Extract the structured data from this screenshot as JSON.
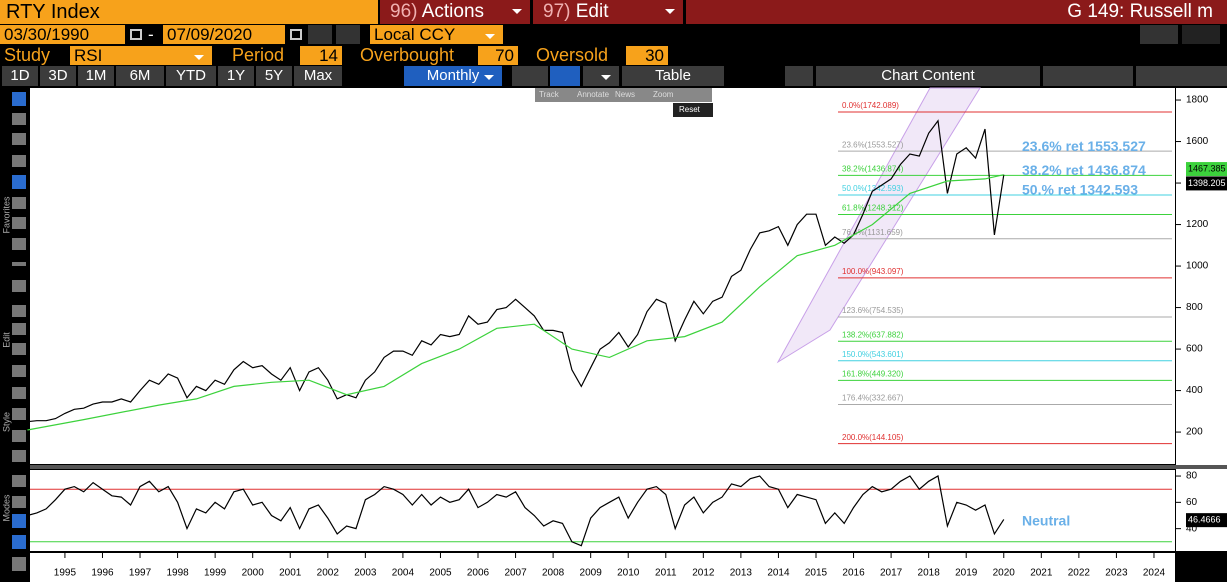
{
  "header": {
    "ticker": "RTY Index",
    "actions": {
      "number": "96)",
      "label": "Actions"
    },
    "edit": {
      "number": "97)",
      "label": "Edit"
    },
    "chart_name": "G 149: Russell m"
  },
  "date_range": {
    "start": "03/30/1990",
    "separator": "-",
    "end": "07/09/2020",
    "currency": "Local CCY"
  },
  "study": {
    "label": "Study",
    "name": "RSI",
    "period_label": "Period",
    "period": 14,
    "overbought_label": "Overbought",
    "overbought": 70,
    "oversold_label": "Oversold",
    "oversold": 30
  },
  "toolbar": {
    "ranges": [
      "1D",
      "3D",
      "1M",
      "6M",
      "YTD",
      "1Y",
      "5Y",
      "Max"
    ],
    "frequency": "Monthly",
    "table": "Table",
    "chart_content": "Chart Content"
  },
  "annotate_menu": {
    "items": [
      "Track",
      "Annotate",
      "News",
      "Zoom"
    ],
    "reset": "Reset"
  },
  "side_labels": [
    "Favorites",
    "Edit",
    "Style",
    "Modes"
  ],
  "chart_data": [
    {
      "type": "line",
      "xlim": [
        1994.57,
        2024.98
      ],
      "ylim": [
        51,
        1858
      ],
      "yticks": [
        200,
        400,
        600,
        800,
        1000,
        1200,
        1400,
        1600,
        1800
      ],
      "series": [
        {
          "color": "#000000",
          "x": [
            1994.5,
            1994.75,
            1995,
            1995.25,
            1995.5,
            1995.75,
            1996,
            1996.25,
            1996.5,
            1996.75,
            1997,
            1997.25,
            1997.5,
            1997.75,
            1998,
            1998.25,
            1998.5,
            1998.75,
            1999,
            1999.25,
            1999.5,
            1999.75,
            2000,
            2000.25,
            2000.5,
            2000.75,
            2001,
            2001.25,
            2001.5,
            2001.75,
            2002,
            2002.25,
            2002.5,
            2002.75,
            2003,
            2003.25,
            2003.5,
            2003.75,
            2004,
            2004.25,
            2004.5,
            2004.75,
            2005,
            2005.25,
            2005.5,
            2005.75,
            2006,
            2006.25,
            2006.5,
            2006.75,
            2007,
            2007.25,
            2007.5,
            2007.75,
            2008,
            2008.25,
            2008.5,
            2008.75,
            2009,
            2009.25,
            2009.5,
            2009.75,
            2010,
            2010.25,
            2010.5,
            2010.75,
            2011,
            2011.25,
            2011.5,
            2011.75,
            2012,
            2012.25,
            2012.5,
            2012.75,
            2013,
            2013.25,
            2013.5,
            2013.75,
            2014,
            2014.25,
            2014.5,
            2014.75,
            2015,
            2015.25,
            2015.5,
            2015.75,
            2016,
            2016.25,
            2016.5,
            2016.75,
            2017,
            2017.25,
            2017.5,
            2017.75,
            2018,
            2018.25,
            2018.5,
            2018.75,
            2019,
            2019.25,
            2019.5,
            2019.75,
            2020,
            2020.25,
            2020.5
          ],
          "values": [
            250,
            255,
            255,
            265,
            290,
            310,
            315,
            335,
            345,
            345,
            360,
            345,
            400,
            450,
            430,
            480,
            460,
            365,
            420,
            400,
            450,
            430,
            500,
            540,
            510,
            520,
            480,
            450,
            510,
            400,
            490,
            510,
            450,
            360,
            380,
            365,
            450,
            490,
            560,
            590,
            590,
            570,
            640,
            620,
            670,
            660,
            670,
            760,
            720,
            730,
            790,
            800,
            840,
            800,
            760,
            690,
            690,
            680,
            500,
            420,
            510,
            600,
            630,
            680,
            610,
            670,
            780,
            840,
            820,
            640,
            740,
            830,
            770,
            830,
            850,
            950,
            980,
            1080,
            1160,
            1170,
            1190,
            1100,
            1200,
            1250,
            1250,
            1100,
            1140,
            1110,
            1150,
            1250,
            1360,
            1390,
            1420,
            1490,
            1540,
            1530,
            1640,
            1700,
            1350,
            1540,
            1570,
            1520,
            1660,
            1150,
            1440
          ]
        },
        {
          "color": "#3cd23c",
          "x": [
            1994.5,
            1996,
            1998,
            1999,
            2000,
            2001,
            2002,
            2003,
            2004,
            2005,
            2006,
            2007,
            2008,
            2009,
            2010,
            2011,
            2012,
            2013,
            2014,
            2015,
            2016,
            2017,
            2018,
            2019,
            2020,
            2020.5
          ],
          "values": [
            210,
            260,
            330,
            360,
            420,
            440,
            450,
            380,
            420,
            530,
            600,
            700,
            720,
            600,
            560,
            640,
            660,
            730,
            900,
            1050,
            1100,
            1200,
            1350,
            1410,
            1420,
            1440
          ]
        }
      ],
      "last_value_labels": [
        {
          "value": 1467.385,
          "color": "#3cd23c"
        },
        {
          "value": 1398.205,
          "color": "#000000"
        }
      ],
      "fib_levels": [
        {
          "label": "0.0%(1742.089)",
          "value": 1742.089,
          "color": "#e03030"
        },
        {
          "label": "23.6%(1553.527)",
          "value": 1553.527,
          "color": "#aaaaaa"
        },
        {
          "label": "38.2%(1436.874)",
          "value": 1436.874,
          "color": "#3cd23c"
        },
        {
          "label": "50.0%(1342.593)",
          "value": 1342.593,
          "color": "#40d0e0"
        },
        {
          "label": "61.8%(1248.312)",
          "value": 1248.312,
          "color": "#3cd23c"
        },
        {
          "label": "76.4%(1131.659)",
          "value": 1131.659,
          "color": "#aaaaaa"
        },
        {
          "label": "100.0%(943.097)",
          "value": 943.097,
          "color": "#e03030"
        },
        {
          "label": "123.6%(754.535)",
          "value": 754.535,
          "color": "#aaaaaa"
        },
        {
          "label": "138.2%(637.882)",
          "value": 637.882,
          "color": "#3cd23c"
        },
        {
          "label": "150.0%(543.601)",
          "value": 543.601,
          "color": "#40d0e0"
        },
        {
          "label": "161.8%(449.320)",
          "value": 449.32,
          "color": "#3cd23c"
        },
        {
          "label": "176.4%(332.667)",
          "value": 332.667,
          "color": "#aaaaaa"
        },
        {
          "label": "200.0%(144.105)",
          "value": 144.105,
          "color": "#e03030"
        }
      ],
      "annotations": [
        {
          "text": "23.6% ret 1553.527",
          "value": 1553.527
        },
        {
          "text": "38.2% ret 1436.874",
          "value": 1436.874
        },
        {
          "text": "50.% ret 1342.593",
          "value": 1342.593
        }
      ]
    },
    {
      "type": "line",
      "xlim": [
        1994.57,
        2024.98
      ],
      "ylim": [
        23,
        84.6
      ],
      "yticks": [
        40,
        60,
        80
      ],
      "xticks": [
        {
          "value": 1995.5,
          "label": "1995"
        },
        {
          "value": 1996.5,
          "label": "1996"
        },
        {
          "value": 1997.5,
          "label": "1997"
        },
        {
          "value": 1998.5,
          "label": "1998"
        },
        {
          "value": 1999.5,
          "label": "1999"
        },
        {
          "value": 2000.5,
          "label": "2000"
        },
        {
          "value": 2001.5,
          "label": "2001"
        },
        {
          "value": 2002.5,
          "label": "2002"
        },
        {
          "value": 2003.5,
          "label": "2003"
        },
        {
          "value": 2004.5,
          "label": "2004"
        },
        {
          "value": 2005.5,
          "label": "2005"
        },
        {
          "value": 2006.5,
          "label": "2006"
        },
        {
          "value": 2007.5,
          "label": "2007"
        },
        {
          "value": 2008.5,
          "label": "2008"
        },
        {
          "value": 2009.5,
          "label": "2009"
        },
        {
          "value": 2010.5,
          "label": "2010"
        },
        {
          "value": 2011.5,
          "label": "2011"
        },
        {
          "value": 2012.5,
          "label": "2012"
        },
        {
          "value": 2013.5,
          "label": "2013"
        },
        {
          "value": 2014.5,
          "label": "2014"
        },
        {
          "value": 2015.5,
          "label": "2015"
        },
        {
          "value": 2016.5,
          "label": "2016"
        },
        {
          "value": 2017.5,
          "label": "2017"
        },
        {
          "value": 2018.5,
          "label": "2018"
        },
        {
          "value": 2019.5,
          "label": "2019"
        },
        {
          "value": 2020.5,
          "label": "2020"
        },
        {
          "value": 2021.5,
          "label": "2021"
        },
        {
          "value": 2022.5,
          "label": "2022"
        },
        {
          "value": 2023.5,
          "label": "2023"
        },
        {
          "value": 2024.5,
          "label": "2024"
        }
      ],
      "series": [
        {
          "color": "#000000",
          "x": [
            1994.5,
            1994.75,
            1995,
            1995.25,
            1995.5,
            1995.75,
            1996,
            1996.25,
            1996.5,
            1996.75,
            1997,
            1997.25,
            1997.5,
            1997.75,
            1998,
            1998.25,
            1998.5,
            1998.75,
            1999,
            1999.25,
            1999.5,
            1999.75,
            2000,
            2000.25,
            2000.5,
            2000.75,
            2001,
            2001.25,
            2001.5,
            2001.75,
            2002,
            2002.25,
            2002.5,
            2002.75,
            2003,
            2003.25,
            2003.5,
            2003.75,
            2004,
            2004.25,
            2004.5,
            2004.75,
            2005,
            2005.25,
            2005.5,
            2005.75,
            2006,
            2006.25,
            2006.5,
            2006.75,
            2007,
            2007.25,
            2007.5,
            2007.75,
            2008,
            2008.25,
            2008.5,
            2008.75,
            2009,
            2009.25,
            2009.5,
            2009.75,
            2010,
            2010.25,
            2010.5,
            2010.75,
            2011,
            2011.25,
            2011.5,
            2011.75,
            2012,
            2012.25,
            2012.5,
            2012.75,
            2013,
            2013.25,
            2013.5,
            2013.75,
            2014,
            2014.25,
            2014.5,
            2014.75,
            2015,
            2015.25,
            2015.5,
            2015.75,
            2016,
            2016.25,
            2016.5,
            2016.75,
            2017,
            2017.25,
            2017.5,
            2017.75,
            2018,
            2018.25,
            2018.5,
            2018.75,
            2019,
            2019.25,
            2019.5,
            2019.75,
            2020,
            2020.25,
            2020.5
          ],
          "values": [
            50,
            52,
            55,
            62,
            70,
            72,
            68,
            75,
            70,
            65,
            64,
            58,
            72,
            76,
            68,
            72,
            60,
            40,
            55,
            52,
            60,
            55,
            68,
            70,
            58,
            60,
            50,
            46,
            56,
            40,
            55,
            58,
            48,
            36,
            42,
            40,
            62,
            66,
            72,
            70,
            66,
            58,
            66,
            58,
            64,
            60,
            62,
            70,
            56,
            60,
            66,
            64,
            68,
            56,
            50,
            42,
            46,
            44,
            30,
            27,
            48,
            56,
            60,
            64,
            48,
            60,
            70,
            72,
            66,
            40,
            58,
            64,
            52,
            60,
            64,
            74,
            72,
            78,
            80,
            72,
            70,
            56,
            66,
            64,
            62,
            44,
            52,
            44,
            56,
            66,
            72,
            68,
            70,
            76,
            80,
            70,
            76,
            80,
            42,
            60,
            58,
            54,
            58,
            36,
            47
          ]
        }
      ],
      "last_value": 46.4666,
      "status": "Neutral"
    }
  ]
}
